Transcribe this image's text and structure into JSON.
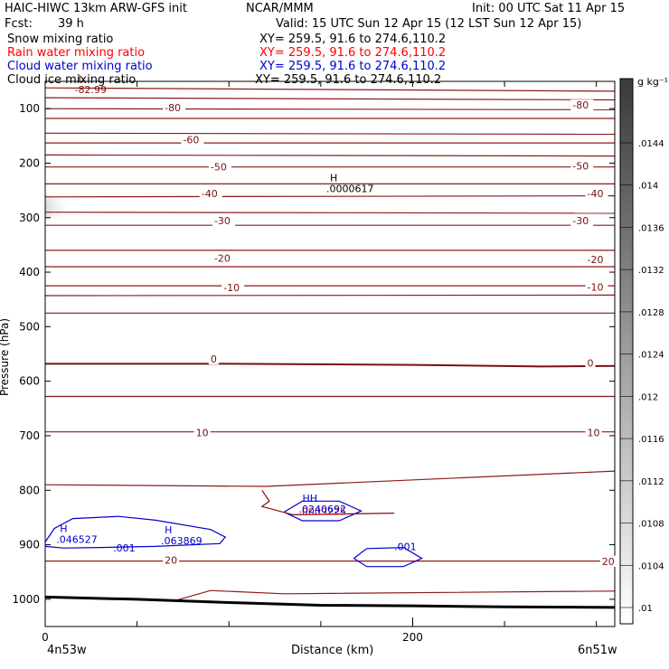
{
  "header": {
    "title": "HAIC-HIWC 13km ARW-GFS init",
    "org": "NCAR/MMM",
    "init": "Init: 00 UTC Sat 11 Apr 15",
    "fcst_label": "Fcst:",
    "fcst_value": "39 h",
    "valid": "Valid: 15 UTC Sun 12 Apr 15 (12 LST Sun 12 Apr 15)"
  },
  "fields": [
    {
      "name": "Snow mixing ratio",
      "xy": "XY= 259.5, 91.6 to 274.6,110.2",
      "color": "#000000"
    },
    {
      "name": "Rain water mixing ratio",
      "xy": "XY= 259.5, 91.6 to 274.6,110.2",
      "color": "#ff0000"
    },
    {
      "name": "Cloud water mixing ratio",
      "xy": "XY= 259.5, 91.6 to 274.6,110.2",
      "color": "#0000cc"
    },
    {
      "name": "Cloud ice mixing ratio",
      "xy": "XY= 259.5, 91.6 to 274.6,110.2",
      "color": "#000000"
    }
  ],
  "chart_data": {
    "type": "cross-section",
    "xlabel": "Distance (km)",
    "ylabel": "Pressure (hPa)",
    "x_range": [
      0,
      310
    ],
    "y_range": [
      50,
      1050
    ],
    "x_ticks": [
      0,
      200
    ],
    "x_tick_labels": [
      "0",
      "200"
    ],
    "y_ticks": [
      100,
      200,
      300,
      400,
      500,
      600,
      700,
      800,
      900,
      1000
    ],
    "left_end_label": "4n53w",
    "right_end_label": "6n51w",
    "colorbar": {
      "unit": "g kg⁻¹",
      "labels": [
        ".0144",
        ".014",
        ".0136",
        ".0132",
        ".0128",
        ".0124",
        ".012",
        ".0116",
        ".0112",
        ".0108",
        ".0104",
        ".01"
      ]
    },
    "temperature_contours": [
      {
        "label": "-80",
        "pts": [
          [
            0,
            62
          ],
          [
            310,
            68
          ]
        ]
      },
      {
        "label": "-80",
        "pts": [
          [
            0,
            80
          ],
          [
            310,
            84
          ]
        ]
      },
      {
        "label": "-80",
        "pts": [
          [
            0,
            100
          ],
          [
            310,
            102
          ]
        ]
      },
      {
        "label": "-80",
        "pts": [
          [
            0,
            118
          ],
          [
            310,
            118
          ]
        ]
      },
      {
        "label": "-60",
        "pts": [
          [
            0,
            145
          ],
          [
            310,
            147
          ]
        ]
      },
      {
        "label": "-60",
        "pts": [
          [
            0,
            163
          ],
          [
            310,
            163
          ]
        ]
      },
      {
        "label": "-50",
        "pts": [
          [
            0,
            185
          ],
          [
            310,
            187
          ]
        ]
      },
      {
        "label": "-50",
        "pts": [
          [
            0,
            207
          ],
          [
            310,
            207
          ]
        ]
      },
      {
        "label": "-40",
        "pts": [
          [
            0,
            238
          ],
          [
            310,
            238
          ]
        ]
      },
      {
        "label": "-40",
        "pts": [
          [
            0,
            262
          ],
          [
            310,
            260
          ]
        ]
      },
      {
        "label": "-30",
        "pts": [
          [
            0,
            290
          ],
          [
            310,
            292
          ]
        ]
      },
      {
        "label": "-30",
        "pts": [
          [
            0,
            314
          ],
          [
            310,
            314
          ]
        ]
      },
      {
        "label": "-20",
        "pts": [
          [
            0,
            360
          ],
          [
            310,
            360
          ]
        ]
      },
      {
        "label": "-20",
        "pts": [
          [
            0,
            390
          ],
          [
            310,
            390
          ]
        ]
      },
      {
        "label": "-10",
        "pts": [
          [
            0,
            425
          ],
          [
            310,
            425
          ]
        ]
      },
      {
        "label": "-10",
        "pts": [
          [
            0,
            443
          ],
          [
            310,
            442
          ]
        ]
      },
      {
        "label": "-10",
        "pts": [
          [
            0,
            475
          ],
          [
            310,
            475
          ]
        ]
      },
      {
        "label": "0",
        "pts": [
          [
            0,
            568
          ],
          [
            100,
            568
          ],
          [
            200,
            570
          ],
          [
            270,
            573
          ],
          [
            310,
            572
          ]
        ]
      },
      {
        "label": "",
        "pts": [
          [
            0,
            628
          ],
          [
            310,
            628
          ]
        ]
      },
      {
        "label": "10",
        "pts": [
          [
            0,
            693
          ],
          [
            310,
            693
          ]
        ]
      },
      {
        "label": "",
        "pts": [
          [
            0,
            790
          ],
          [
            120,
            793
          ],
          [
            310,
            765
          ]
        ]
      },
      {
        "label": "20",
        "pts": [
          [
            0,
            930
          ],
          [
            310,
            930
          ]
        ]
      },
      {
        "label": "",
        "pts": [
          [
            70,
            1003
          ],
          [
            90,
            984
          ],
          [
            130,
            990
          ],
          [
            310,
            985
          ]
        ]
      }
    ],
    "temperature_labels": [
      {
        "text": "-80",
        "x": 65,
        "y": 105
      },
      {
        "text": "-80",
        "x": 287,
        "y": 100
      },
      {
        "text": "-60",
        "x": 75,
        "y": 164
      },
      {
        "text": "-50",
        "x": 90,
        "y": 213
      },
      {
        "text": "-50",
        "x": 287,
        "y": 212
      },
      {
        "text": "-40",
        "x": 85,
        "y": 262
      },
      {
        "text": "-40",
        "x": 295,
        "y": 262
      },
      {
        "text": "-30",
        "x": 92,
        "y": 312
      },
      {
        "text": "-30",
        "x": 287,
        "y": 312
      },
      {
        "text": "-20",
        "x": 92,
        "y": 381
      },
      {
        "text": "-20",
        "x": 295,
        "y": 383
      },
      {
        "text": "-10",
        "x": 97,
        "y": 435
      },
      {
        "text": "-10",
        "x": 295,
        "y": 434
      },
      {
        "text": "0",
        "x": 90,
        "y": 566
      },
      {
        "text": "0",
        "x": 295,
        "y": 573
      },
      {
        "text": "10",
        "x": 82,
        "y": 701
      },
      {
        "text": "10",
        "x": 295,
        "y": 701
      },
      {
        "text": "20",
        "x": 65,
        "y": 935
      },
      {
        "text": "20",
        "x": 303,
        "y": 937
      }
    ],
    "extrema": [
      {
        "letter": "L",
        "value": "-82.99",
        "x": 18,
        "y": 68,
        "color": "#7a1010"
      },
      {
        "letter": "H",
        "value": ".0000617",
        "x": 155,
        "y": 250,
        "color": "#000000"
      },
      {
        "letter": "HH",
        "value": ".0240692",
        "x": 140,
        "y": 838,
        "color": "#0000cc"
      },
      {
        "letter": "H",
        "value": ".046527",
        "x": 8,
        "y": 893,
        "color": "#0000cc"
      },
      {
        "letter": "H",
        "value": ".063869",
        "x": 65,
        "y": 896,
        "color": "#0000cc"
      }
    ],
    "overlay_labels": [
      {
        "text": ".001",
        "x": 37,
        "y": 912,
        "color": "#0000cc"
      },
      {
        "text": ".001",
        "x": 190,
        "y": 910,
        "color": "#0000cc"
      },
      {
        "text": ".0009225",
        "x": 138,
        "y": 845,
        "color": "#cc0000"
      }
    ],
    "surface_line": [
      [
        0,
        996
      ],
      [
        50,
        1000
      ],
      [
        100,
        1006
      ],
      [
        150,
        1011
      ],
      [
        200,
        1012
      ],
      [
        250,
        1014
      ],
      [
        310,
        1015
      ]
    ]
  }
}
